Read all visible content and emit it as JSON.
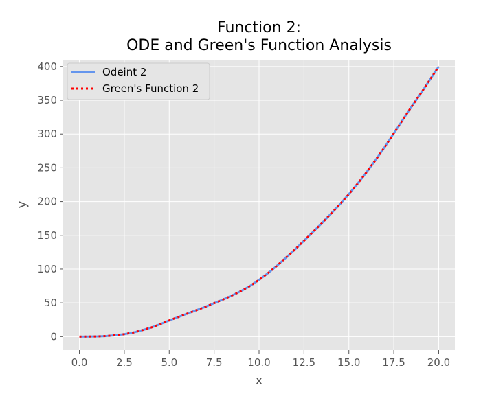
{
  "chart_data": {
    "type": "line",
    "title_lines": [
      "Function 2:",
      "ODE and Green's Function Analysis"
    ],
    "xlabel": "x",
    "ylabel": "y",
    "xlim": [
      -0.9,
      20.9
    ],
    "ylim": [
      -20,
      410
    ],
    "xticks": [
      0.0,
      2.5,
      5.0,
      7.5,
      10.0,
      12.5,
      15.0,
      17.5,
      20.0
    ],
    "xtick_labels": [
      "0.0",
      "2.5",
      "5.0",
      "7.5",
      "10.0",
      "12.5",
      "15.0",
      "17.5",
      "20.0"
    ],
    "yticks": [
      0,
      50,
      100,
      150,
      200,
      250,
      300,
      350,
      400
    ],
    "ytick_labels": [
      "0",
      "50",
      "100",
      "150",
      "200",
      "250",
      "300",
      "350",
      "400"
    ],
    "grid": true,
    "legend_position": "top-left",
    "x": [
      0,
      0.5,
      1,
      1.5,
      2,
      2.5,
      3,
      3.5,
      4,
      4.5,
      5,
      5.5,
      6,
      6.5,
      7,
      7.5,
      8,
      8.5,
      9,
      9.5,
      10,
      10.5,
      11,
      11.5,
      12,
      12.5,
      13,
      13.5,
      14,
      14.5,
      15,
      15.5,
      16,
      16.5,
      17,
      17.5,
      18,
      18.5,
      19,
      19.5,
      20
    ],
    "series": [
      {
        "name": "Odeint 2",
        "color": "#6495ed",
        "style": "solid",
        "values": [
          0,
          0.1,
          0.3,
          0.9,
          2.0,
          3.6,
          6.0,
          9.5,
          13.5,
          18.5,
          24.0,
          29.0,
          34.0,
          39.0,
          44.0,
          49.5,
          55.0,
          61.0,
          67.5,
          75.0,
          84.0,
          94.0,
          105.0,
          117.0,
          129.0,
          142.0,
          155.0,
          168.0,
          182.0,
          196.0,
          211.0,
          227.0,
          244.0,
          262.0,
          281.0,
          301.0,
          321.0,
          341.0,
          360.0,
          380.0,
          400.0
        ]
      },
      {
        "name": "Green's Function 2",
        "color": "#ff0000",
        "style": "dotted",
        "values": [
          0,
          0.1,
          0.3,
          0.9,
          2.0,
          3.6,
          6.0,
          9.5,
          13.5,
          18.5,
          24.0,
          29.0,
          34.0,
          39.0,
          44.0,
          49.5,
          55.0,
          61.0,
          67.5,
          75.0,
          84.0,
          94.0,
          105.0,
          117.0,
          129.0,
          142.0,
          155.0,
          168.0,
          182.0,
          196.0,
          211.0,
          227.0,
          244.0,
          262.0,
          281.0,
          301.0,
          321.0,
          341.0,
          360.0,
          380.0,
          400.0
        ]
      }
    ]
  }
}
